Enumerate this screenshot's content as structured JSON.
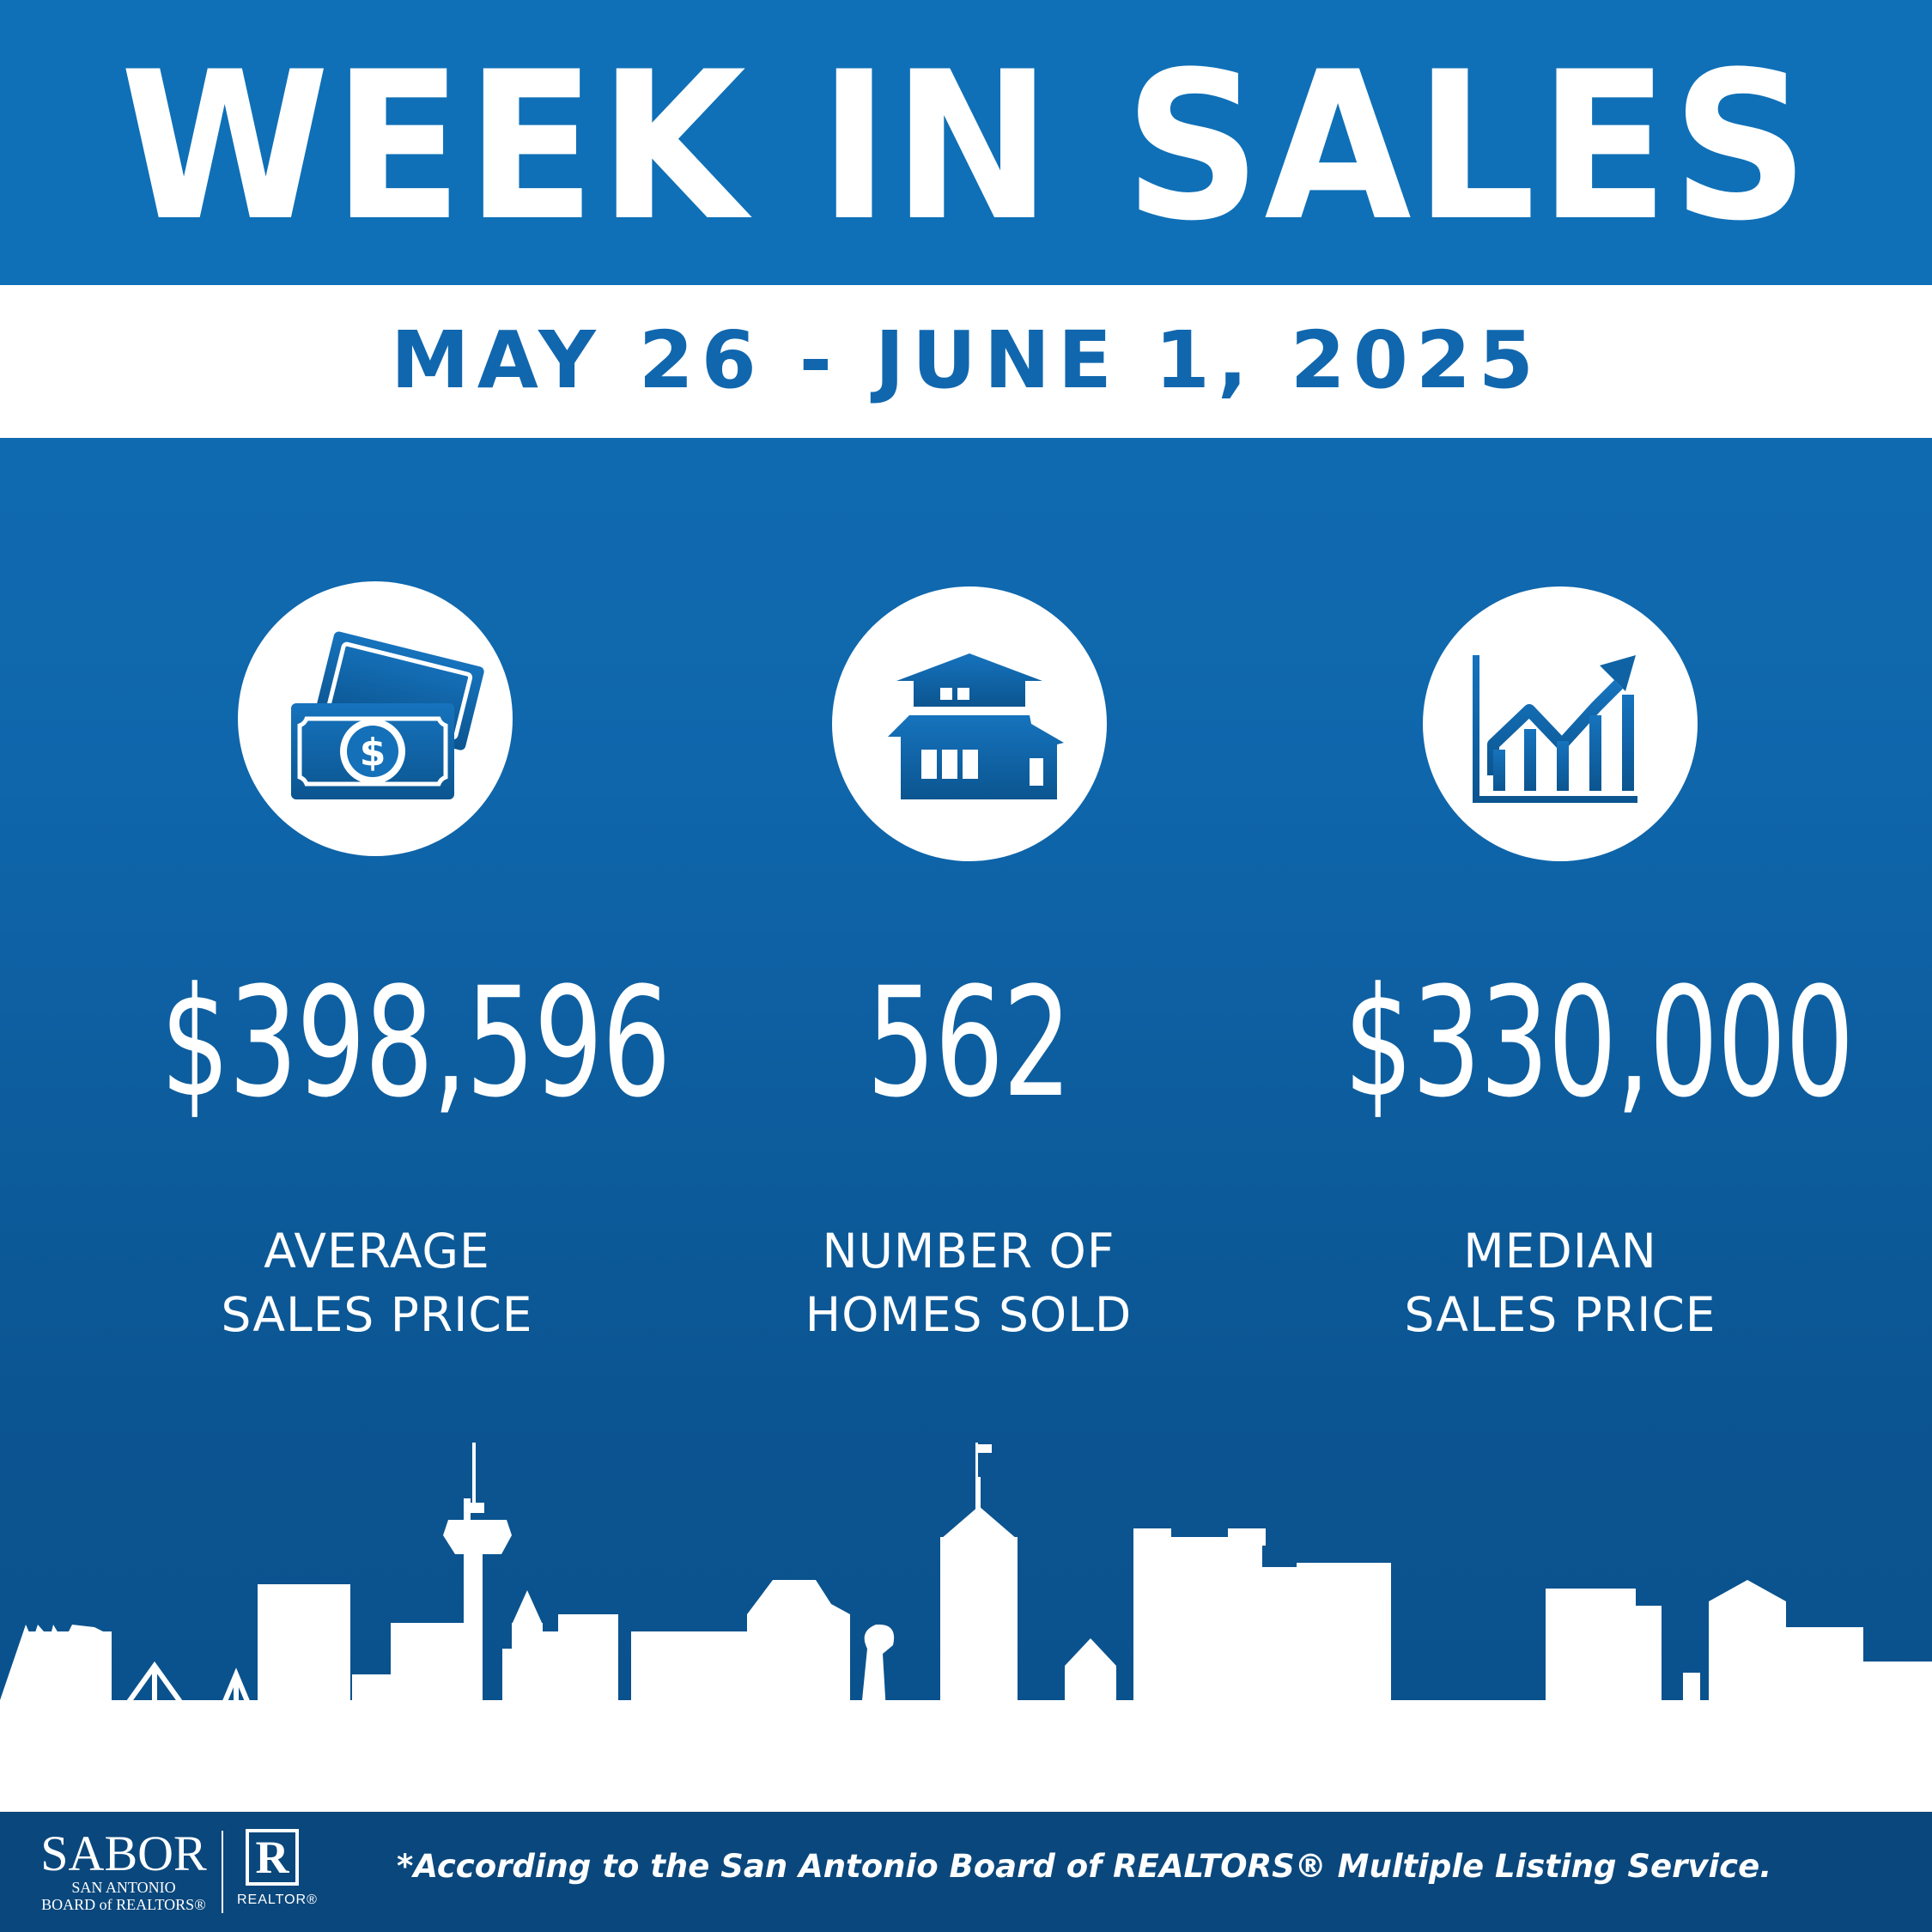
{
  "header": {
    "title": "WEEK IN SALES",
    "date_range": "MAY 26 - JUNE 1, 2025"
  },
  "stats": [
    {
      "icon": "money-icon",
      "value": "$398,596",
      "label_line1": "AVERAGE",
      "label_line2": "SALES PRICE"
    },
    {
      "icon": "house-icon",
      "value": "562",
      "label_line1": "NUMBER OF",
      "label_line2": "HOMES SOLD"
    },
    {
      "icon": "growth-chart-icon",
      "value": "$330,000",
      "label_line1": "MEDIAN",
      "label_line2": "SALES PRICE"
    }
  ],
  "footer": {
    "sabor_logo": "SABOR",
    "sabor_sub_line1": "SAN ANTONIO",
    "sabor_sub_line2": "BOARD of REALTORS®",
    "realtor_logo_mark": "R",
    "realtor_logo_text": "REALTOR®",
    "footnote": "*According to the San Antonio Board of REALTORS® Multiple Listing Service."
  },
  "colors": {
    "primary_blue": "#0f70b7",
    "text_blue": "#1167ae",
    "footer_blue": "#0a477c",
    "white": "#ffffff"
  }
}
